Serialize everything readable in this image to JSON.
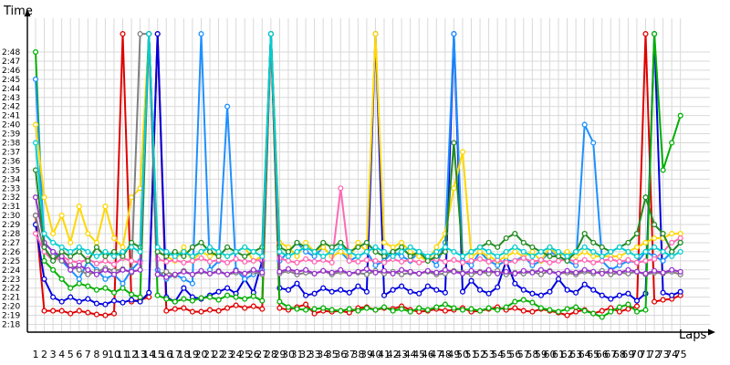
{
  "chart_data": {
    "type": "line",
    "xlabel": "Laps",
    "ylabel": "Time",
    "grid": true,
    "x_ticks": [
      1,
      2,
      3,
      4,
      5,
      6,
      7,
      8,
      9,
      10,
      11,
      12,
      13,
      14,
      15,
      16,
      17,
      18,
      19,
      20,
      21,
      22,
      23,
      24,
      25,
      26,
      27,
      28,
      29,
      30,
      31,
      32,
      33,
      34,
      35,
      36,
      37,
      38,
      39,
      40,
      41,
      42,
      43,
      44,
      45,
      46,
      47,
      48,
      49,
      50,
      51,
      52,
      53,
      54,
      55,
      56,
      57,
      58,
      59,
      60,
      61,
      62,
      63,
      64,
      65,
      66,
      67,
      68,
      69,
      70,
      71,
      72,
      73,
      74,
      75
    ],
    "y_ticks": [
      "2:18",
      "2:19",
      "2:20",
      "2:21",
      "2:22",
      "2:23",
      "2:24",
      "2:25",
      "2:26",
      "2:27",
      "2:28",
      "2:29",
      "2:30",
      "2:31",
      "2:32",
      "2:33",
      "2:34",
      "2:35",
      "2:36",
      "2:37",
      "2:38",
      "2:39",
      "2:40",
      "2:41",
      "2:42",
      "2:43",
      "2:44",
      "2:45",
      "2:46",
      "2:47",
      "2:48"
    ],
    "ylim_seconds": [
      138,
      168
    ],
    "xlim": [
      1,
      75
    ],
    "series": [
      {
        "color": "#e00000",
        "values": [
          150,
          139.5,
          139.5,
          139.5,
          139.2,
          139.5,
          139.3,
          139.1,
          139.0,
          139.2,
          170,
          140.5,
          140.7,
          141,
          170,
          139.5,
          139.7,
          139.8,
          139.4,
          139.4,
          139.6,
          139.5,
          139.8,
          140.1,
          139.8,
          140.0,
          139.7,
          170,
          139.8,
          139.6,
          139.9,
          140.2,
          139.2,
          139.5,
          139.4,
          139.5,
          139.3,
          139.8,
          139.9,
          139.6,
          139.8,
          139.7,
          140.0,
          139.6,
          139.4,
          139.5,
          139.7,
          139.5,
          139.6,
          139.8,
          139.4,
          139.5,
          139.7,
          139.9,
          139.6,
          139.8,
          139.5,
          139.4,
          139.7,
          139.5,
          139.3,
          139.0,
          139.4,
          139.6,
          139.2,
          139.5,
          139.8,
          139.4,
          139.7,
          140.0,
          170,
          140.5,
          140.7,
          140.8,
          141.2
        ]
      },
      {
        "color": "#0000e0",
        "values": [
          149,
          143,
          141,
          140.5,
          141,
          140.5,
          140.8,
          140.3,
          140.2,
          140.6,
          140.4,
          140.7,
          140.5,
          141.5,
          170,
          141,
          140.5,
          142,
          141,
          140.8,
          141.2,
          141.6,
          142,
          141.4,
          143,
          141.5,
          145,
          170,
          142,
          141.8,
          142.5,
          141.2,
          141.4,
          142,
          141.6,
          141.8,
          141.5,
          142.2,
          141.6,
          170,
          141.2,
          141.8,
          142.2,
          141.6,
          141.4,
          142.2,
          141.8,
          141.5,
          170,
          141.6,
          142.8,
          141.8,
          141.4,
          142.1,
          145,
          142.5,
          141.8,
          141.4,
          141.2,
          141.6,
          143,
          141.8,
          141.5,
          142.4,
          141.8,
          141.2,
          140.8,
          141.2,
          141.4,
          140.6,
          141.4,
          170,
          141.5,
          141.2,
          141.6
        ]
      },
      {
        "color": "#00b000",
        "values": [
          168,
          145,
          144,
          143,
          142,
          142.5,
          142.2,
          141.8,
          142.0,
          141.5,
          142,
          141.3,
          141.0,
          170,
          141.2,
          140.8,
          140.5,
          140.8,
          140.6,
          140.9,
          141.0,
          140.7,
          141.2,
          141.0,
          140.8,
          141.1,
          140.6,
          170,
          140.5,
          139.9,
          139.7,
          139.6,
          139.7,
          139.8,
          139.6,
          139.5,
          139.7,
          139.5,
          139.8,
          139.6,
          139.9,
          139.5,
          139.7,
          139.4,
          139.8,
          139.6,
          139.9,
          140.2,
          139.8,
          139.6,
          139.7,
          139.5,
          139.8,
          139.6,
          139.9,
          140.5,
          140.7,
          140.4,
          139.8,
          139.6,
          139.4,
          139.7,
          139.9,
          139.5,
          139.2,
          138.8,
          139.4,
          139.9,
          140.2,
          139.4,
          139.6,
          170,
          155,
          158,
          161
        ]
      },
      {
        "color": "#1e90ff",
        "values": [
          165,
          147,
          146,
          145,
          144,
          143,
          145,
          144,
          143,
          143.5,
          142.5,
          144,
          145,
          170,
          144,
          143,
          143.5,
          143,
          142.5,
          170,
          144,
          145,
          162,
          144,
          143,
          143.5,
          144,
          170,
          145,
          146,
          147,
          146,
          145.5,
          146.5,
          145.5,
          146,
          145,
          145.5,
          146,
          144.5,
          145,
          146,
          145.5,
          145,
          146,
          145.5,
          144.5,
          147,
          170,
          145,
          144.5,
          146,
          145,
          144.5,
          145,
          145,
          145.5,
          144.5,
          145,
          146,
          145.5,
          145,
          144.5,
          160,
          158,
          145,
          144,
          144.5,
          145,
          144.8,
          146,
          145.5,
          145,
          146,
          147
        ]
      },
      {
        "color": "#ffd700",
        "values": [
          160,
          152,
          148,
          150,
          147,
          151,
          148,
          147,
          151,
          147.5,
          146.5,
          152,
          153,
          170,
          146,
          145.5,
          145,
          146.5,
          145,
          146,
          145.5,
          146,
          145.5,
          146,
          146.5,
          145,
          145.5,
          170,
          147,
          146.5,
          145.5,
          147,
          146,
          146.5,
          145.5,
          146,
          145.5,
          147,
          146,
          170,
          147,
          146.5,
          147,
          146,
          145.5,
          145,
          146.5,
          148,
          153,
          157,
          145.5,
          146,
          145.5,
          145,
          145.5,
          146,
          145.5,
          146,
          145,
          146.5,
          145.5,
          146,
          145.5,
          146,
          145.5,
          145.5,
          145.5,
          145.5,
          146,
          146.5,
          147,
          147.5,
          147.5,
          148,
          148
        ]
      },
      {
        "color": "#808080",
        "values": [
          150,
          146,
          145.5,
          145,
          144.5,
          144,
          143.5,
          143.8,
          144.2,
          143.9,
          144.1,
          143.7,
          170,
          170,
          143.5,
          143.8,
          143.4,
          143.9,
          143.5,
          143.8,
          143.6,
          143.9,
          143.5,
          143.7,
          143.6,
          143.8,
          143.5,
          170,
          143.6,
          143.9,
          143.5,
          143.7,
          143.6,
          143.9,
          143.5,
          143.8,
          143.6,
          143.7,
          143.5,
          143.9,
          143.6,
          143.8,
          143.5,
          143.7,
          143.6,
          143.8,
          143.5,
          143.6,
          143.9,
          143.7,
          143.5,
          143.8,
          143.6,
          143.9,
          143.5,
          143.7,
          143.6,
          143.8,
          143.5,
          143.9,
          143.6,
          143.7,
          143.5,
          143.8,
          143.6,
          143.9,
          143.5,
          143.7,
          143.6,
          143.8,
          143.5,
          143.7,
          143.6,
          143.8,
          143.5
        ]
      },
      {
        "color": "#ff69b4",
        "values": [
          148,
          146,
          145,
          145.5,
          145,
          144.8,
          145.2,
          144.7,
          145,
          144.6,
          145.3,
          145,
          144.8,
          170,
          145.2,
          144.9,
          145.1,
          144.8,
          145,
          145.3,
          144.9,
          145.1,
          144.8,
          145.2,
          144.9,
          145,
          145.1,
          170,
          145.3,
          145,
          144.8,
          145.2,
          144.9,
          145.1,
          144.8,
          153,
          145,
          144.9,
          145.1,
          145,
          144.8,
          145.2,
          144.9,
          145.1,
          144.8,
          145,
          145.2,
          144.9,
          145.1,
          144.8,
          145,
          145.2,
          144.9,
          145.1,
          144.8,
          145,
          145.3,
          144.9,
          145.1,
          144.8,
          145,
          145.2,
          144.9,
          145.1,
          144.8,
          145,
          145.2,
          144.9,
          145.1,
          144.8,
          145,
          145.2,
          146,
          147,
          147.5
        ]
      },
      {
        "color": "#9932cc",
        "values": [
          152,
          147,
          146,
          145.5,
          144,
          144.5,
          144,
          143.5,
          144,
          143.5,
          144,
          143.8,
          144,
          170,
          143.5,
          143.2,
          143.5,
          143.8,
          143.5,
          143.9,
          143.6,
          143.8,
          143.5,
          143.9,
          143.6,
          144,
          143.7,
          170,
          143.8,
          144.1,
          143.8,
          144.0,
          143.6,
          143.9,
          143.7,
          144.0,
          143.6,
          143.8,
          144.1,
          143.7,
          143.9,
          143.6,
          144.0,
          143.8,
          143.6,
          143.9,
          143.7,
          144.0,
          143.8,
          143.6,
          143.9,
          143.7,
          144.0,
          143.6,
          143.8,
          143.6,
          143.9,
          143.7,
          144.0,
          143.8,
          143.6,
          143.9,
          143.7,
          144.0,
          143.8,
          143.6,
          143.9,
          143.7,
          144.0,
          143.8,
          143.6,
          143.9,
          143.7,
          144.0,
          143.8
        ]
      },
      {
        "color": "#228b22",
        "values": [
          155,
          146.5,
          145,
          146,
          145.5,
          146,
          145,
          146.5,
          145.5,
          146,
          145.5,
          147,
          146.5,
          170,
          146,
          145.5,
          146,
          145.5,
          146.5,
          147,
          146,
          145.5,
          146.5,
          146,
          145.5,
          146,
          146.5,
          170,
          146.5,
          146,
          147,
          146.5,
          146,
          147,
          146.5,
          147,
          146,
          146.5,
          147,
          146,
          145.5,
          146,
          146.5,
          145.5,
          146,
          145,
          145.5,
          146,
          158,
          145.5,
          146,
          146.5,
          147,
          146.5,
          147.5,
          148,
          147,
          146.5,
          146,
          145.5,
          145.5,
          145,
          146,
          148,
          147,
          146.5,
          146,
          146.5,
          147,
          148,
          152,
          149,
          148,
          146,
          147
        ]
      },
      {
        "color": "#00ced1",
        "values": [
          158,
          148,
          147,
          146.5,
          146,
          146.5,
          146,
          145.5,
          146,
          145.5,
          146,
          146.5,
          146,
          170,
          146.5,
          146,
          145.5,
          146,
          145.5,
          146,
          146.5,
          146,
          145.5,
          146,
          146.5,
          146,
          145.5,
          170,
          146,
          145.5,
          146,
          146.5,
          146,
          145.5,
          146,
          146.5,
          146,
          145.5,
          146,
          146.5,
          146,
          145.5,
          146,
          146.5,
          146,
          145.5,
          146,
          146.5,
          146,
          145.5,
          146,
          146.5,
          146,
          145.5,
          146,
          146.5,
          146,
          145.5,
          146,
          146.5,
          146,
          145.5,
          146,
          146.5,
          146,
          145.5,
          146,
          146.5,
          146,
          145.5,
          146,
          146.5,
          146,
          145.5,
          146
        ]
      }
    ]
  }
}
